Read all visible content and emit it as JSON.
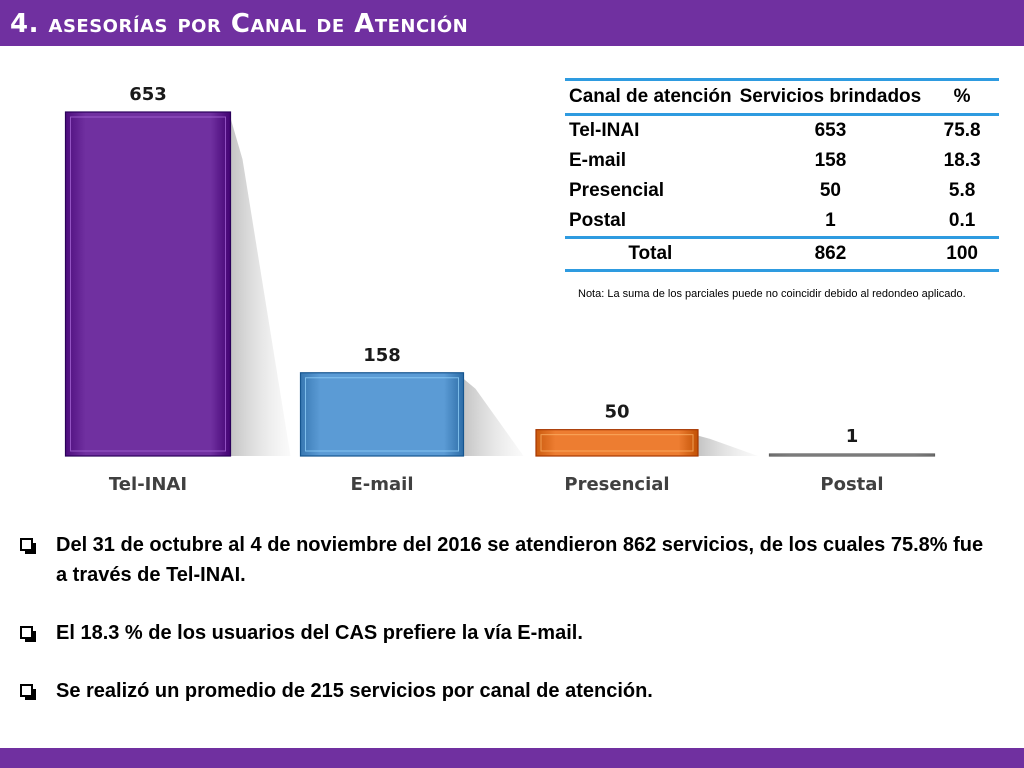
{
  "title": "4. asesorías por Canal de Atención",
  "chart_data": {
    "type": "bar",
    "categories": [
      "Tel-INAI",
      "E-mail",
      "Presencial",
      "Postal"
    ],
    "values": [
      653,
      158,
      50,
      1
    ],
    "data_labels": [
      "653",
      "158",
      "50",
      "1"
    ],
    "colors": [
      "#7030a0",
      "#5b9bd5",
      "#ed7d31",
      "#a5a5a5"
    ],
    "ylim": [
      0,
      653
    ],
    "grid": false,
    "legend": "none"
  },
  "table": {
    "headers": [
      "Canal de atención",
      "Servicios brindados",
      "%"
    ],
    "rows": [
      [
        "Tel-INAI",
        "653",
        "75.8"
      ],
      [
        "E-mail",
        "158",
        "18.3"
      ],
      [
        "Presencial",
        "50",
        "5.8"
      ],
      [
        "Postal",
        "1",
        "0.1"
      ]
    ],
    "total": [
      "Total",
      "862",
      "100"
    ]
  },
  "note": "Nota: La suma de los parciales puede no coincidir debido al redondeo aplicado.",
  "bullets": [
    "Del 31 de octubre al 4 de noviembre del 2016 se atendieron 862 servicios, de los cuales 75.8% fue a través de Tel-INAI.",
    "El 18.3 % de los usuarios del CAS prefiere la vía E-mail.",
    "Se realizó un promedio de 215 servicios por canal de atención."
  ]
}
